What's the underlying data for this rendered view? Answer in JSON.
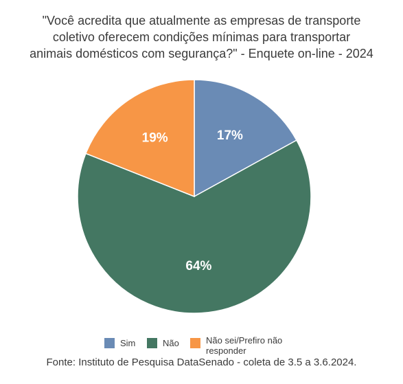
{
  "title_lines": [
    "\"Você acredita que atualmente as empresas de transporte",
    "coletivo oferecem condições mínimas para transportar",
    "animais domésticos com segurança?\" - Enquete on-line - 2024"
  ],
  "source": "Fonte: Instituto de Pesquisa DataSenado - coleta de 3.5 a 3.6.2024.",
  "chart_data": {
    "type": "pie",
    "title": "\"Você acredita que atualmente as empresas de transporte coletivo oferecem condições mínimas para transportar animais domésticos com segurança?\" - Enquete on-line - 2024",
    "categories": [
      "Sim",
      "Não",
      "Não sei/Prefiro não responder"
    ],
    "values": [
      17,
      64,
      19
    ],
    "labels": [
      "17%",
      "64%",
      "19%"
    ],
    "colors": [
      "#6a8bb5",
      "#447762",
      "#f79646"
    ],
    "legend_position": "bottom"
  },
  "legend": [
    {
      "label": "Sim",
      "color": "#6a8bb5"
    },
    {
      "label": "Não",
      "color": "#447762"
    },
    {
      "label": "Não sei/Prefiro não responder",
      "color": "#f79646"
    }
  ]
}
